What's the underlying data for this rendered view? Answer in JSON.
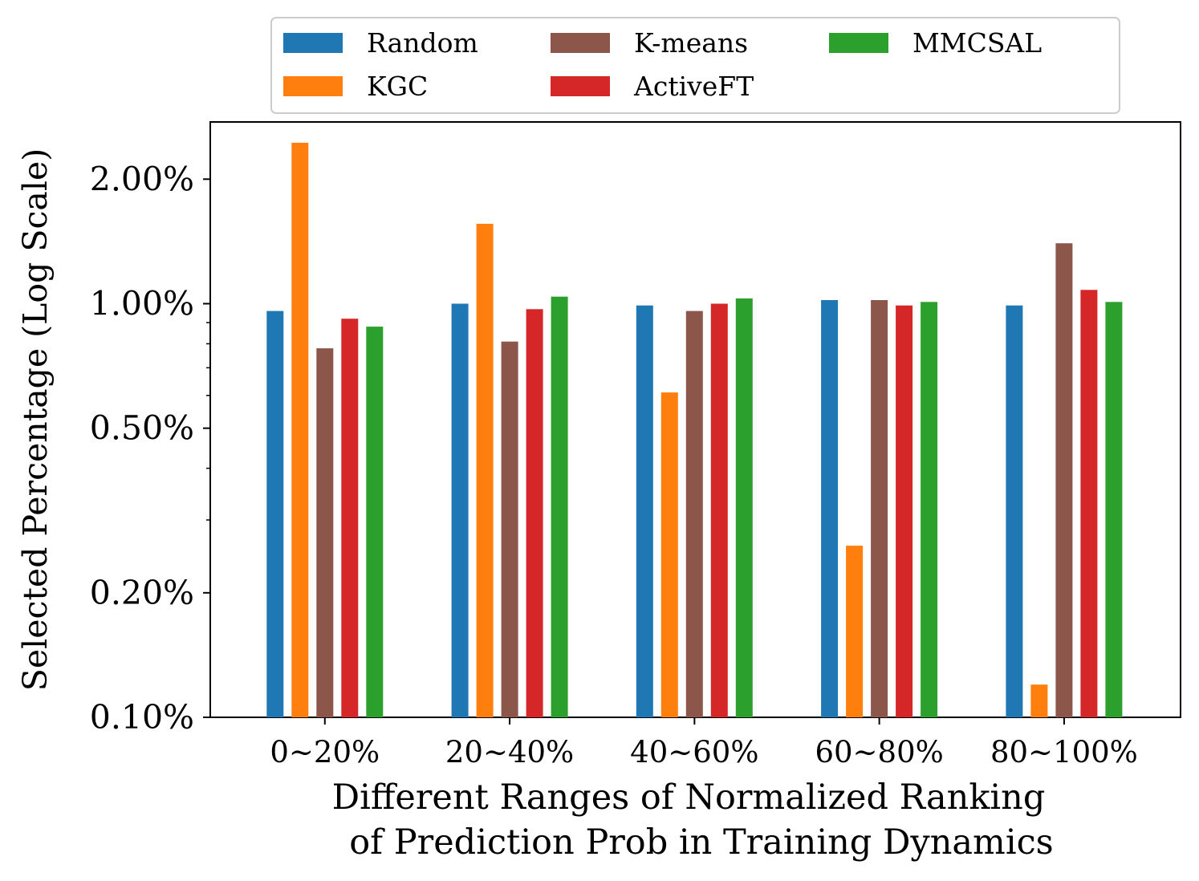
{
  "chart_data": {
    "type": "bar",
    "title": "",
    "xlabel_lines": [
      "Different Ranges of Normalized Ranking",
      "of Prediction Prob in Training Dynamics"
    ],
    "ylabel": "Selected Percentage (Log Scale)",
    "yscale": "log",
    "ylim": [
      0.1,
      2.75
    ],
    "categories": [
      "0~20%",
      "20~40%",
      "40~60%",
      "60~80%",
      "80~100%"
    ],
    "y_ticks": [
      {
        "value": 0.1,
        "label": "0.10%"
      },
      {
        "value": 0.2,
        "label": "0.20%"
      },
      {
        "value": 0.5,
        "label": "0.50%"
      },
      {
        "value": 1.0,
        "label": "1.00%"
      },
      {
        "value": 2.0,
        "label": "2.00%"
      }
    ],
    "y_minor_ticks": [
      0.3,
      0.4,
      0.6,
      0.7,
      0.8,
      0.9
    ],
    "legend_position": "top-center-outside",
    "series": [
      {
        "name": "Random",
        "color": "#1f77b4",
        "values": [
          0.96,
          1.0,
          0.99,
          1.02,
          0.99
        ]
      },
      {
        "name": "KGC",
        "color": "#ff7f0e",
        "values": [
          2.45,
          1.56,
          0.61,
          0.26,
          0.12
        ]
      },
      {
        "name": "K-means",
        "color": "#8c564b",
        "values": [
          0.78,
          0.81,
          0.96,
          1.02,
          1.4
        ]
      },
      {
        "name": "ActiveFT",
        "color": "#d62728",
        "values": [
          0.92,
          0.97,
          1.0,
          0.99,
          1.08
        ]
      },
      {
        "name": "MMCSAL",
        "color": "#2ca02c",
        "values": [
          0.88,
          1.04,
          1.03,
          1.01,
          1.01
        ]
      }
    ]
  }
}
